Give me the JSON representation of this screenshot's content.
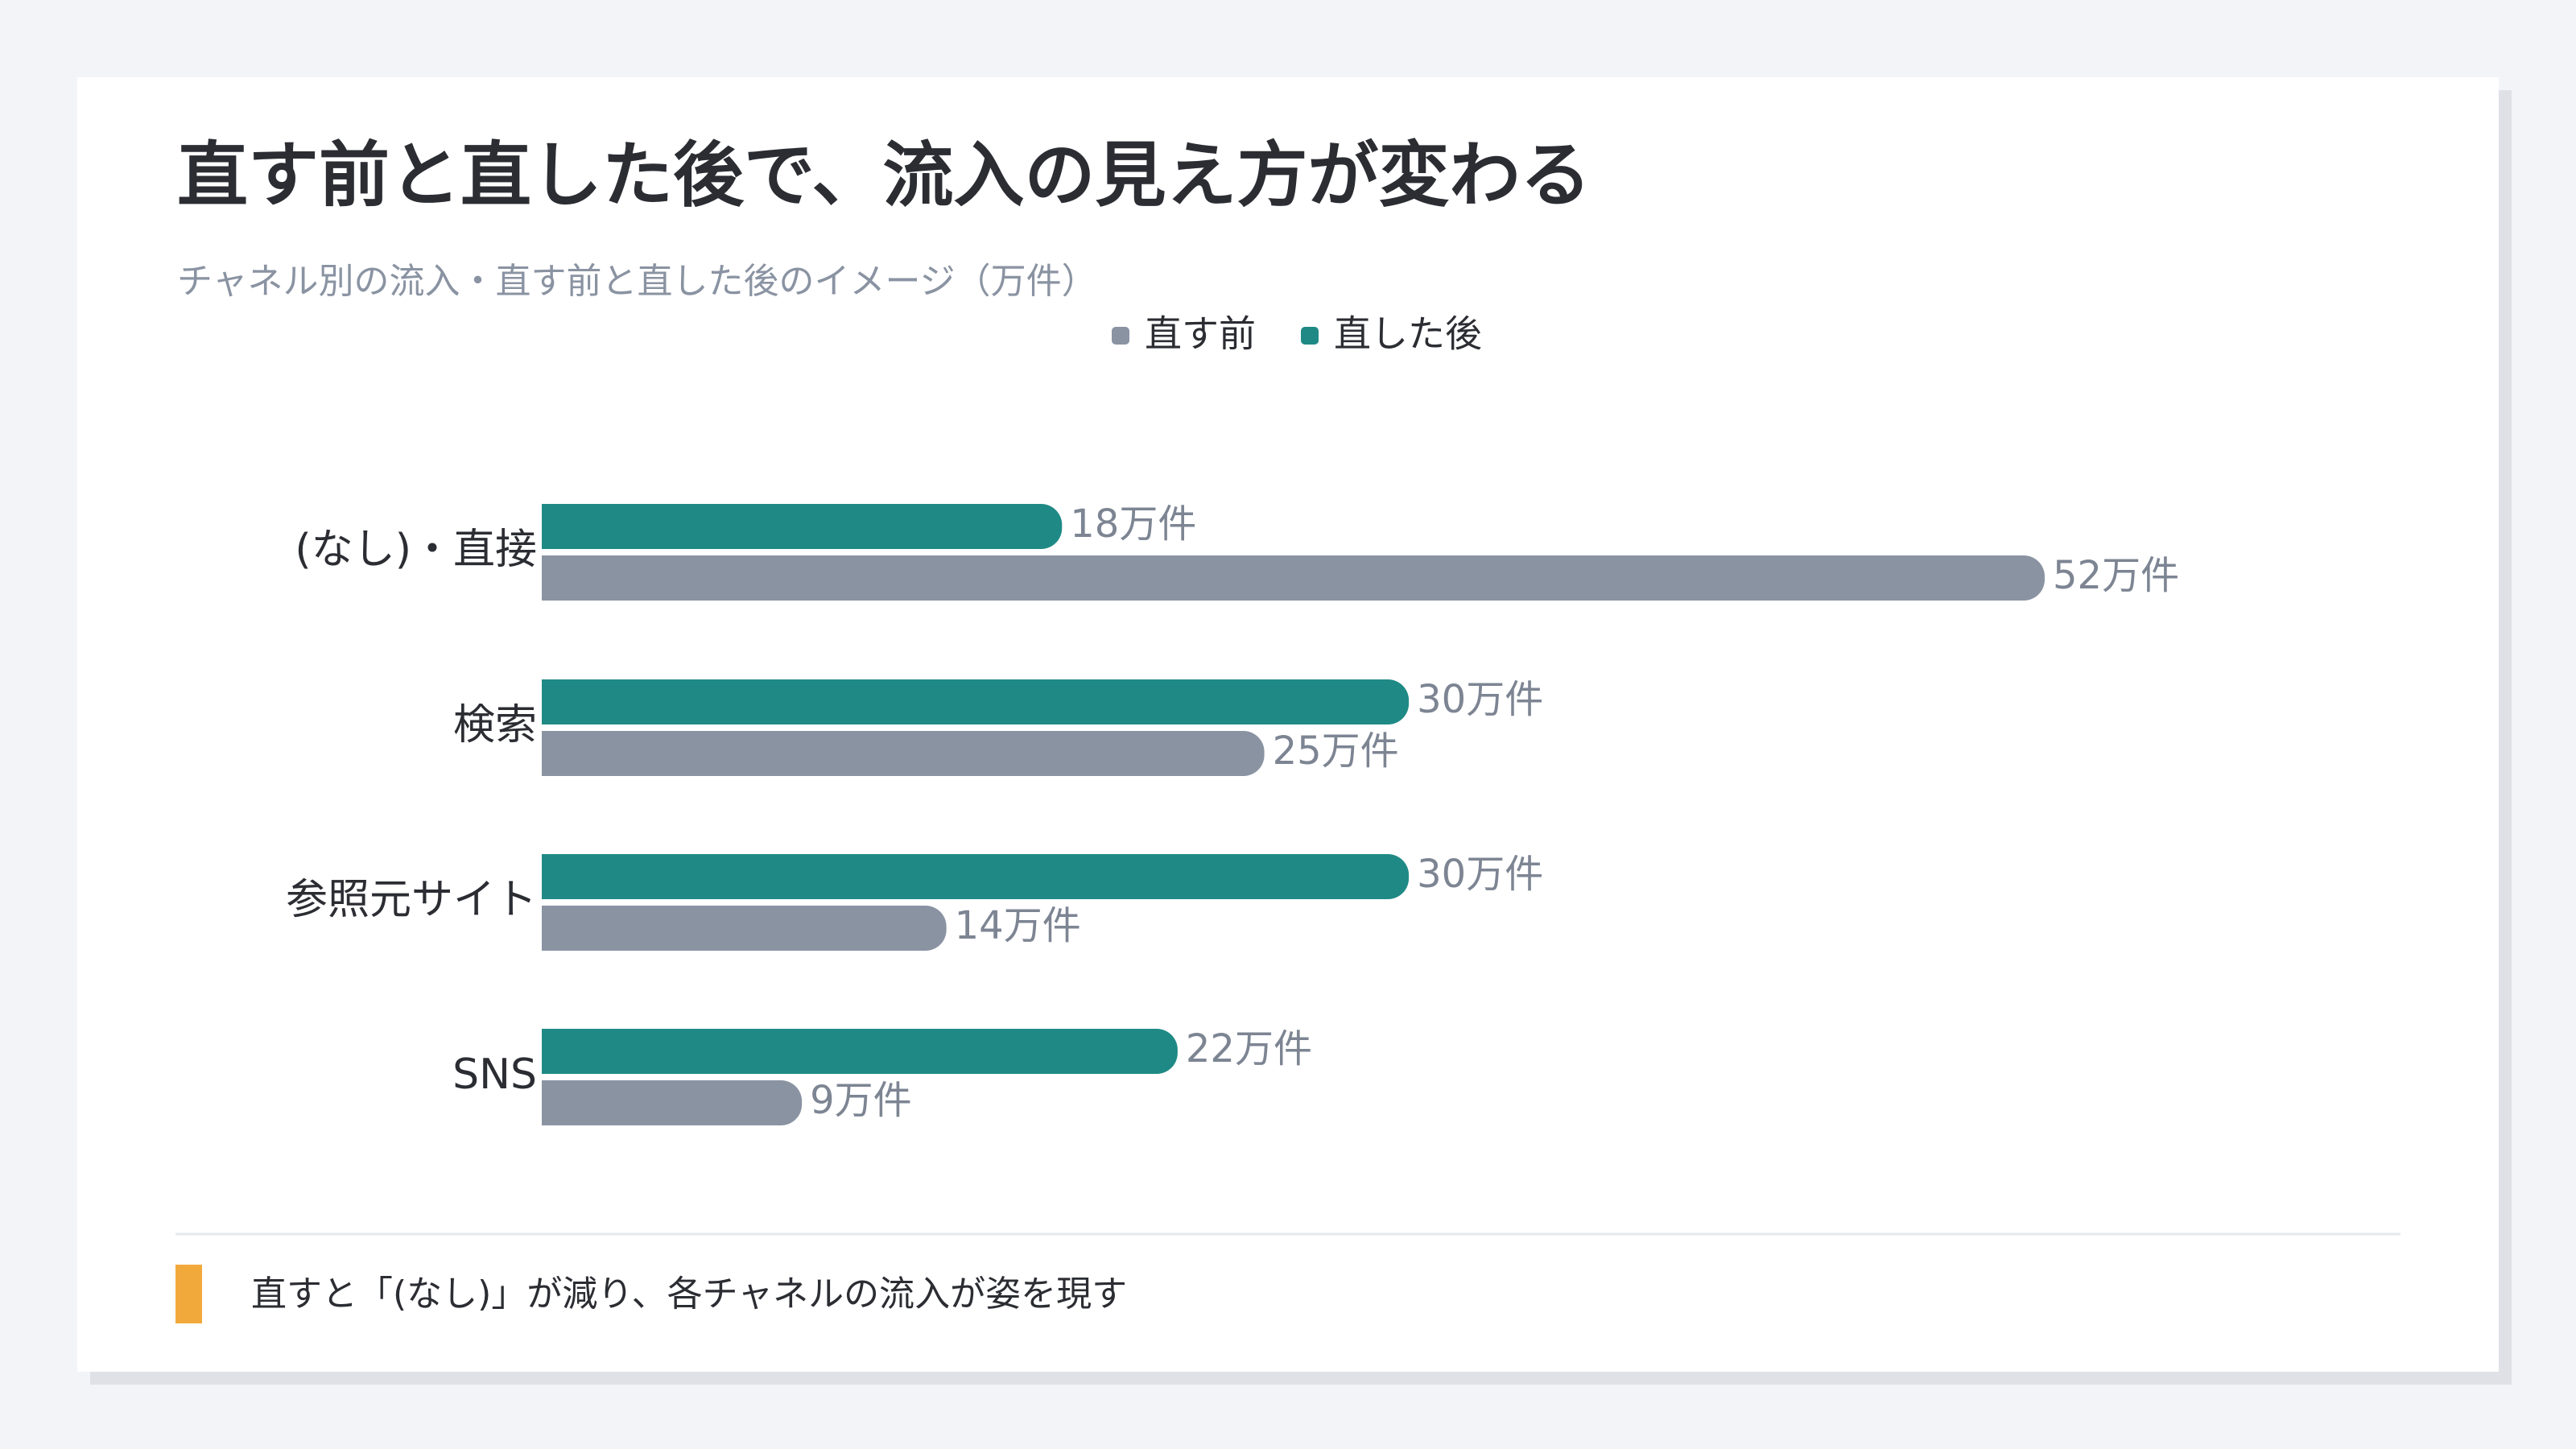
{
  "chart_data": {
    "type": "bar",
    "orientation": "horizontal",
    "title": "直す前と直した後で、流入の見え方が変わる",
    "subtitle": "チャネル別の流入・直す前と直した後のイメージ（万件）",
    "categories": [
      "(なし)・直接",
      "検索",
      "参照元サイト",
      "SNS"
    ],
    "series": [
      {
        "name": "直す前",
        "color": "#8a93a2",
        "values": [
          52,
          25,
          14,
          9
        ],
        "value_labels": [
          "52万件",
          "25万件",
          "14万件",
          "9万件"
        ]
      },
      {
        "name": "直した後",
        "color": "#1f8a85",
        "values": [
          18,
          30,
          30,
          22
        ],
        "value_labels": [
          "18万件",
          "30万件",
          "30万件",
          "22万件"
        ]
      }
    ],
    "legend": "top",
    "annotation": "直すと「(なし)」が減り、各チャネルの流入が姿を現す"
  }
}
